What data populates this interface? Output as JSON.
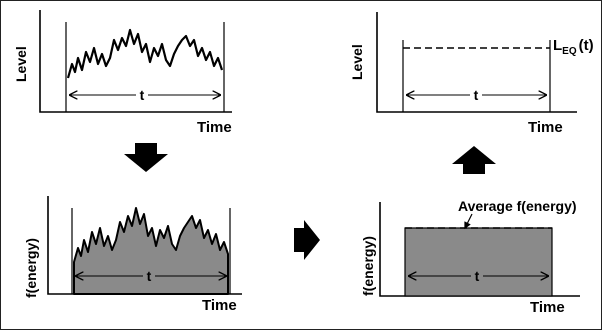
{
  "panels": {
    "top_left": {
      "ylabel": "Level",
      "xlabel": "Time",
      "span": "t"
    },
    "top_right": {
      "ylabel": "Level",
      "xlabel": "Time",
      "span": "t",
      "line_label_main": "L",
      "line_label_sub": "EQ",
      "line_label_tail": "(t)"
    },
    "bottom_left": {
      "ylabel": "f(energy)",
      "xlabel": "Time",
      "span": "t"
    },
    "bottom_right": {
      "ylabel": "f(energy)",
      "xlabel": "Time",
      "span": "t",
      "average_label": "Average f(energy)"
    }
  },
  "arrows": {
    "down": "arrow-down",
    "right": "arrow-right",
    "up": "arrow-up"
  },
  "colors": {
    "fill_gray": "#8a8a8a",
    "ink": "#000000"
  }
}
